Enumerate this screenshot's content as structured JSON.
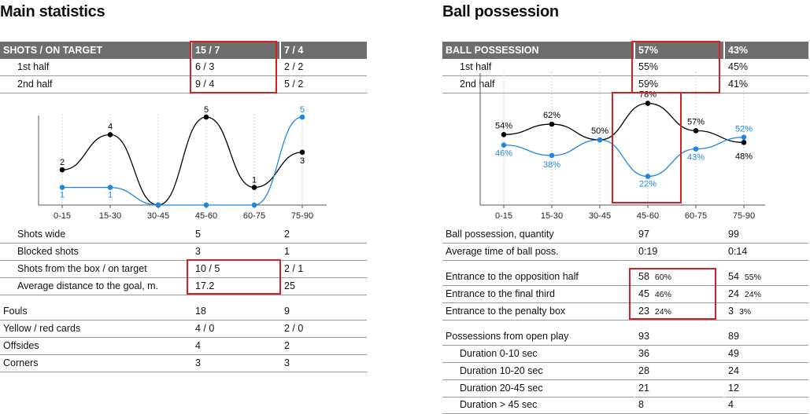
{
  "left": {
    "title": "Main statistics",
    "header": {
      "label": "SHOTS / ON TARGET",
      "v1": "15 / 7",
      "v2": "7 / 4"
    },
    "halves": [
      {
        "label": "1st half",
        "v1": "6 / 3",
        "v2": "2 / 2"
      },
      {
        "label": "2nd half",
        "v1": "9 / 4",
        "v2": "5 / 2"
      }
    ],
    "rows_a": [
      {
        "label": "Shots wide",
        "v1": "5",
        "v2": "2"
      },
      {
        "label": "Blocked shots",
        "v1": "3",
        "v2": "1"
      },
      {
        "label": "Shots from the box / on target",
        "v1": "10 / 5",
        "v2": "2 / 1"
      },
      {
        "label": "Average distance to the goal, m.",
        "v1": "17.2",
        "v2": "25"
      }
    ],
    "rows_b": [
      {
        "label": "Fouls",
        "v1": "18",
        "v2": "9"
      },
      {
        "label": "Yellow / red cards",
        "v1": "4 / 0",
        "v2": "2 / 0"
      },
      {
        "label": "Offsides",
        "v1": "4",
        "v2": "2"
      },
      {
        "label": "Corners",
        "v1": "3",
        "v2": "3"
      }
    ]
  },
  "right": {
    "title": "Ball possession",
    "header": {
      "label": "BALL POSSESSION",
      "v1": "57%",
      "v2": "43%"
    },
    "halves": [
      {
        "label": "1st half",
        "v1": "55%",
        "v2": "45%"
      },
      {
        "label": "2nd half",
        "v1": "59%",
        "v2": "41%"
      }
    ],
    "rows_a": [
      {
        "label": "Ball possession, quantity",
        "v1": "97",
        "v2": "99"
      },
      {
        "label": "Average time of ball poss.",
        "v1": "0:19",
        "v2": "0:14"
      }
    ],
    "rows_b": [
      {
        "label": "Entrance to the opposition half",
        "v1": "58",
        "p1": "60%",
        "v2": "54",
        "p2": "55%"
      },
      {
        "label": "Entrance to the final third",
        "v1": "45",
        "p1": "46%",
        "v2": "24",
        "p2": "24%"
      },
      {
        "label": "Entrance to the penalty box",
        "v1": "23",
        "p1": "24%",
        "v2": "3",
        "p2": "3%"
      }
    ],
    "rows_c": [
      {
        "label": "Possessions from open play",
        "v1": "93",
        "v2": "89"
      },
      {
        "label": "Duration  0-10 sec",
        "v1": "36",
        "v2": "49"
      },
      {
        "label": "Duration  10-20 sec",
        "v1": "28",
        "v2": "24"
      },
      {
        "label": "Duration  20-45 sec",
        "v1": "21",
        "v2": "12"
      },
      {
        "label": "Duration  > 45 sec",
        "v1": "8",
        "v2": "4"
      }
    ]
  },
  "colors": {
    "team1": "#000000",
    "team2": "#1f87e0",
    "highlight": "#d52027",
    "header_bg": "#6e6e6e"
  },
  "chart_data": [
    {
      "type": "line",
      "categories": [
        "0-15",
        "15-30",
        "30-45",
        "45-60",
        "60-75",
        "75-90"
      ],
      "ylim": [
        0,
        5
      ],
      "series": [
        {
          "values": [
            2,
            4,
            0,
            5,
            1,
            3
          ],
          "labels": [
            "2",
            "4",
            "",
            "5",
            "1",
            "3"
          ],
          "color": "#000000"
        },
        {
          "values": [
            1,
            1,
            0,
            0,
            0,
            5
          ],
          "labels": [
            "1",
            "1",
            "",
            "",
            "",
            "5"
          ],
          "color": "#1f87e0"
        }
      ]
    },
    {
      "type": "line",
      "categories": [
        "0-15",
        "15-30",
        "30-45",
        "45-60",
        "60-75",
        "75-90"
      ],
      "ylim": [
        0,
        100
      ],
      "series": [
        {
          "values": [
            54,
            62,
            50,
            78,
            57,
            48
          ],
          "labels": [
            "54%",
            "62%",
            "50%",
            "78%",
            "57%",
            "48%"
          ],
          "color": "#000000"
        },
        {
          "values": [
            46,
            38,
            50,
            22,
            43,
            52
          ],
          "labels": [
            "46%",
            "38%",
            "",
            "22%",
            "43%",
            "52%"
          ],
          "color": "#1f87e0"
        }
      ]
    }
  ]
}
